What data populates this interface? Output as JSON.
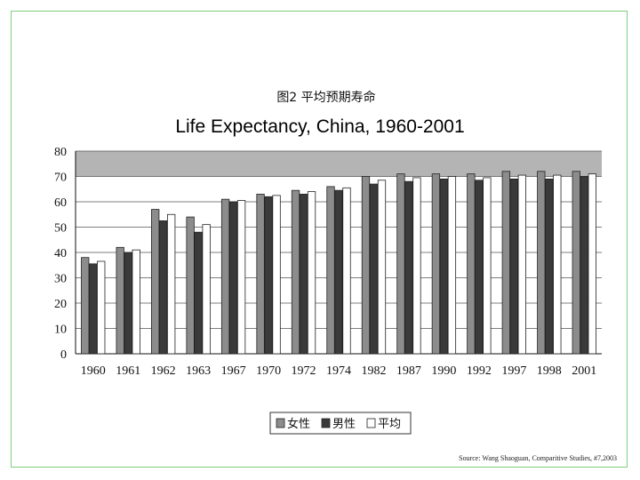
{
  "source_note": "Source: Wang Shaoguan, Comparitive Studies, #7,2003",
  "chart_data": {
    "type": "bar",
    "title_cn": "图2  平均预期寿命",
    "title": "Life Expectancy,  China, 1960-2001",
    "categories": [
      "1960",
      "1961",
      "1962",
      "1963",
      "1967",
      "1970",
      "1972",
      "1974",
      "1982",
      "1987",
      "1990",
      "1992",
      "1997",
      "1998",
      "2001"
    ],
    "series": [
      {
        "name": "女性",
        "color": "#8c8c8c",
        "values": [
          38,
          42,
          57,
          54,
          61,
          63,
          64.5,
          66,
          70,
          71,
          71,
          71,
          72,
          72,
          72
        ]
      },
      {
        "name": "男性",
        "color": "#3a3a3a",
        "values": [
          35.5,
          40,
          52.5,
          48,
          60,
          62,
          63,
          64.5,
          67,
          68,
          69,
          68.5,
          69,
          69,
          70
        ]
      },
      {
        "name": "平均",
        "color": "#ffffff",
        "values": [
          36.5,
          41,
          55,
          51,
          60.5,
          62.5,
          64,
          65.5,
          68.5,
          69.5,
          70,
          69.5,
          70.5,
          70.5,
          71
        ]
      }
    ],
    "yticks": [
      0,
      10,
      20,
      30,
      40,
      50,
      60,
      70,
      80
    ],
    "ylim": [
      0,
      80
    ],
    "grid": true,
    "legend_position": "bottom-center",
    "band_color": "#b4b4b4"
  }
}
